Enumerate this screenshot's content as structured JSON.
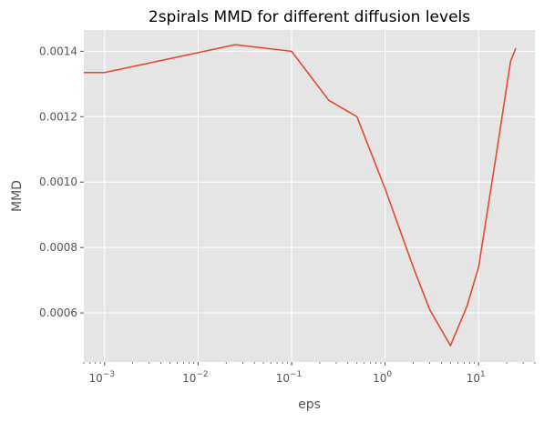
{
  "chart_data": {
    "type": "line",
    "title": "2spirals MMD for different diffusion levels",
    "xlabel": "eps",
    "ylabel": "MMD",
    "xscale": "log",
    "xlim": [
      0.0006,
      40
    ],
    "ylim": [
      0.00045,
      0.001465
    ],
    "grid": true,
    "background": "#E5E5E5",
    "line_color": "#E24A33",
    "x_ticks": [
      {
        "value": 0.001,
        "base": "10",
        "exp": "−3"
      },
      {
        "value": 0.01,
        "base": "10",
        "exp": "−2"
      },
      {
        "value": 0.1,
        "base": "10",
        "exp": "−1"
      },
      {
        "value": 1,
        "base": "10",
        "exp": "0"
      },
      {
        "value": 10,
        "base": "10",
        "exp": "1"
      }
    ],
    "y_ticks": [
      {
        "value": 0.0006,
        "label": "0.0006"
      },
      {
        "value": 0.0008,
        "label": "0.0008"
      },
      {
        "value": 0.001,
        "label": "0.0010"
      },
      {
        "value": 0.0012,
        "label": "0.0012"
      },
      {
        "value": 0.0014,
        "label": "0.0014"
      }
    ],
    "series": [
      {
        "x": [
          0.0006,
          0.001,
          0.025,
          0.1,
          0.25,
          0.5,
          1,
          2,
          3,
          5,
          7.5,
          10,
          15,
          22,
          25
        ],
        "y": [
          0.001335,
          0.001335,
          0.00142,
          0.0014,
          0.00125,
          0.0012,
          0.00098,
          0.00074,
          0.00061,
          0.0005,
          0.00062,
          0.00074,
          0.00106,
          0.00137,
          0.00141
        ]
      }
    ]
  }
}
